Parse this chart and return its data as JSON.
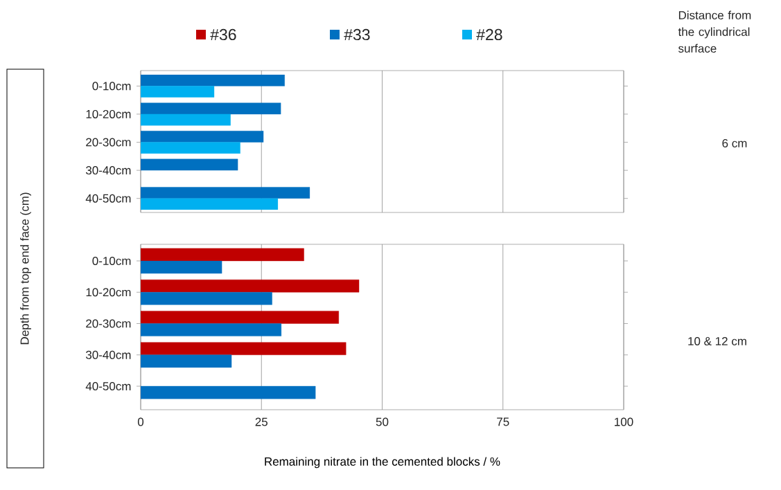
{
  "chart_data": [
    {
      "type": "bar",
      "orientation": "horizontal",
      "ylabel": "Depth from top end face (cm)",
      "categories": [
        "0-10cm",
        "10-20cm",
        "20-30cm",
        "30-40cm",
        "40-50cm"
      ],
      "series": [
        {
          "name": "#33",
          "color": "#0070c0",
          "values": [
            29.8,
            29.0,
            25.4,
            20.1,
            35.0
          ]
        },
        {
          "name": "#28",
          "color": "#00b0f0",
          "values": [
            15.2,
            18.6,
            20.6,
            null,
            28.4
          ]
        }
      ],
      "xlim": [
        0,
        100
      ],
      "xticks": [
        0,
        25,
        50,
        75,
        100
      ],
      "grid": "x",
      "legend": "top",
      "tick_labels": "y",
      "annotations": [
        "Distance from the cylindrical surface",
        "6 cm"
      ]
    },
    {
      "type": "bar",
      "orientation": "horizontal",
      "xlabel": "Remaining nitrate in the cemented blocks / %",
      "categories": [
        "0-10cm",
        "10-20cm",
        "20-30cm",
        "30-40cm",
        "40-50cm"
      ],
      "series": [
        {
          "name": "#36",
          "color": "#c00000",
          "values": [
            33.8,
            45.2,
            41.0,
            42.5,
            null
          ]
        },
        {
          "name": "#33",
          "color": "#0070c0",
          "values": [
            16.8,
            27.2,
            29.1,
            18.8,
            36.2
          ]
        }
      ],
      "xlim": [
        0,
        100
      ],
      "xticks": [
        0,
        25,
        50,
        75,
        100
      ],
      "grid": "x",
      "legend": "top",
      "annotations": [
        "10 & 12 cm"
      ]
    }
  ]
}
